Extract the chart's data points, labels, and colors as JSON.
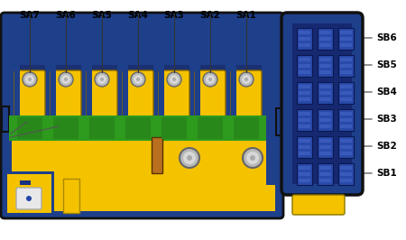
{
  "bg_color": "#ffffff",
  "blue": "#1e3f8a",
  "blue_dark": "#1a3070",
  "yellow": "#f5c200",
  "green": "#2e9a1e",
  "gray": "#b8b8b8",
  "gray_dark": "#888888",
  "white": "#f0f0f0",
  "brown": "#b87020",
  "black": "#111111",
  "sa_labels": [
    "SA7",
    "SA6",
    "SA5",
    "SA4",
    "SA3",
    "SA2",
    "SA1"
  ],
  "sb_labels": [
    "SB6",
    "SB5",
    "SB4",
    "SB3",
    "SB2",
    "SB1"
  ],
  "fig_width": 4.5,
  "fig_height": 2.66,
  "dpi": 100
}
